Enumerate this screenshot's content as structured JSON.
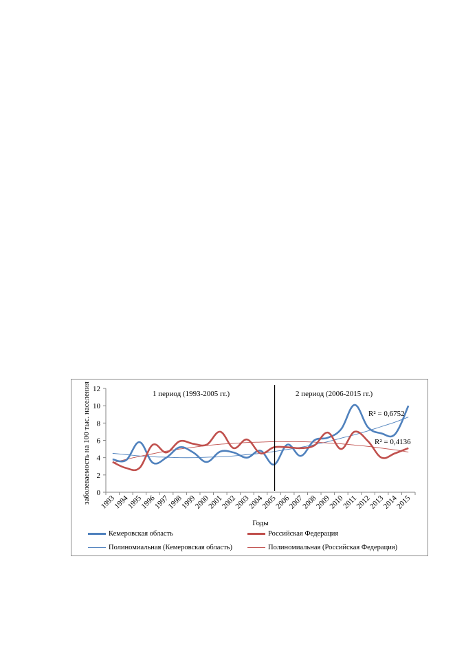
{
  "chart_data": {
    "type": "line",
    "xlabel": "Годы",
    "ylabel": "заболеваемость на 100 тыс. населения",
    "ylim": [
      0,
      12
    ],
    "yticks": [
      0,
      2,
      4,
      6,
      8,
      10,
      12
    ],
    "categories": [
      "1993",
      "1994",
      "1995",
      "1996",
      "1997",
      "1998",
      "1999",
      "2000",
      "2001",
      "2002",
      "2003",
      "2004",
      "2005",
      "2006",
      "2007",
      "2008",
      "2009",
      "2010",
      "2011",
      "2012",
      "2013",
      "2014",
      "2015"
    ],
    "series": [
      {
        "name": "Кемеровская область",
        "color": "#4f81bd",
        "values": [
          3.8,
          3.7,
          5.8,
          3.4,
          4.0,
          5.2,
          4.6,
          3.5,
          4.7,
          4.6,
          4.0,
          4.8,
          3.2,
          5.5,
          4.2,
          6.0,
          6.3,
          7.3,
          10.1,
          7.5,
          6.8,
          6.7,
          10.0
        ]
      },
      {
        "name": "Российская Федерация",
        "color": "#c0504d",
        "values": [
          3.5,
          2.8,
          2.8,
          5.5,
          4.6,
          5.9,
          5.6,
          5.5,
          7.0,
          5.1,
          6.1,
          4.5,
          5.2,
          5.2,
          5.1,
          5.4,
          6.9,
          5.0,
          7.0,
          5.9,
          4.0,
          4.5,
          5.1
        ]
      }
    ],
    "trendlines": [
      {
        "name": "Полиномиальная (Кемеровская область)",
        "color": "#4f81bd",
        "values": [
          4.5,
          4.35,
          4.2,
          4.1,
          4.05,
          4.0,
          4.0,
          4.05,
          4.1,
          4.2,
          4.35,
          4.5,
          4.7,
          4.95,
          5.2,
          5.5,
          5.85,
          6.25,
          6.65,
          7.1,
          7.6,
          8.1,
          8.7
        ],
        "r2": "R² = 0,6752"
      },
      {
        "name": "Полиномиальная (Российская Федерация)",
        "color": "#c0504d",
        "values": [
          3.4,
          3.8,
          4.15,
          4.45,
          4.75,
          5.0,
          5.2,
          5.4,
          5.55,
          5.65,
          5.75,
          5.8,
          5.85,
          5.85,
          5.85,
          5.8,
          5.7,
          5.6,
          5.45,
          5.3,
          5.1,
          4.9,
          4.65
        ],
        "r2": "R² = 0,4136"
      }
    ],
    "annotations": {
      "period1": "1 период (1993-2005 гг.)",
      "period2": "2 период (2006-2015 гг.)",
      "divider_at": "2005"
    },
    "grid": false,
    "legend_position": "bottom"
  }
}
